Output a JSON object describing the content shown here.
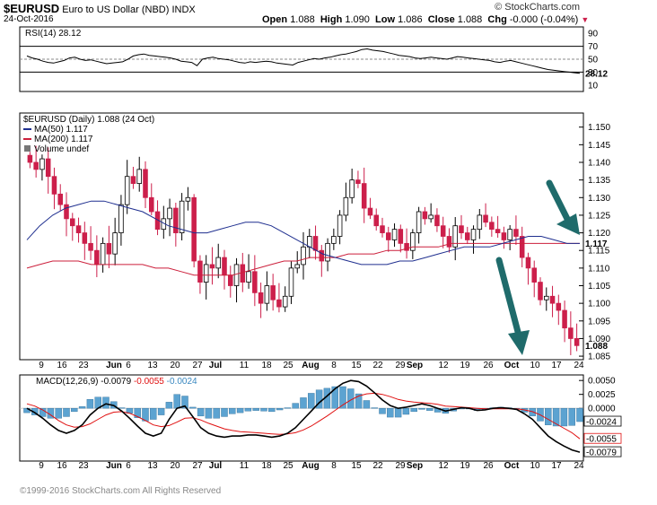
{
  "header": {
    "symbol": "$EURUSD",
    "name": "Euro to US Dollar (NBD)",
    "exchange": "INDX",
    "date": "24-Oct-2016",
    "brand": "© StockCharts.com",
    "open_label": "Open",
    "open": "1.088",
    "high_label": "High",
    "high": "1.090",
    "low_label": "Low",
    "low": "1.086",
    "close_label": "Close",
    "close": "1.088",
    "chg_label": "Chg",
    "chg": "-0.000 (-0.04%)"
  },
  "copyright": "©1999-2016 StockCharts.com All Rights Reserved",
  "colors": {
    "up": "#ffffff",
    "down": "#cc1f4b",
    "ma50": "#1f2f8f",
    "ma200": "#cc1f3b",
    "macd": "#000000",
    "signal": "#e01010",
    "hist": "#5ca3d1",
    "arrow": "#1f6b6b"
  },
  "chart_data": [
    {
      "type": "line",
      "title": "RSI(14) 28.12",
      "ylim": [
        0,
        100
      ],
      "ticks": [
        "90",
        "70",
        "50",
        "30",
        "10"
      ],
      "tick_values": [
        90,
        70,
        50,
        30,
        10
      ],
      "last_value_label": "28.12",
      "values": [
        55,
        52,
        50,
        47,
        45,
        44,
        46,
        48,
        52,
        53,
        50,
        48,
        49,
        47,
        45,
        43,
        44,
        45,
        46,
        50,
        55,
        57,
        58,
        56,
        55,
        54,
        53,
        52,
        50,
        47,
        46,
        45,
        40,
        50,
        52,
        53,
        51,
        50,
        49,
        47,
        45,
        44,
        46,
        45,
        46,
        47,
        46,
        44,
        43,
        42,
        41,
        45,
        47,
        49,
        51,
        50,
        52,
        53,
        55,
        57,
        58,
        60,
        62,
        65,
        66,
        64,
        63,
        62,
        60,
        58,
        56,
        55,
        54,
        52,
        51,
        52,
        53,
        52,
        51,
        50,
        52,
        54,
        53,
        52,
        51,
        50,
        49,
        48,
        46,
        45,
        47,
        48,
        46,
        44,
        42,
        40,
        38,
        36,
        34,
        33,
        32,
        31,
        30,
        29,
        28.12
      ]
    },
    {
      "type": "candlestick",
      "title": "$EURUSD (Daily) 1.088 (24 Oct)",
      "legend": [
        {
          "name": "MA(50) 1.117"
        },
        {
          "name": "MA(200) 1.117"
        },
        {
          "name": "Volume undef"
        }
      ],
      "ylim": [
        1.084,
        1.154
      ],
      "yticks": [
        "1.150",
        "1.145",
        "1.140",
        "1.135",
        "1.130",
        "1.125",
        "1.120",
        "1.115",
        "1.110",
        "1.105",
        "1.100",
        "1.095",
        "1.090",
        "1.085"
      ],
      "ytick_values": [
        1.15,
        1.145,
        1.14,
        1.135,
        1.13,
        1.125,
        1.12,
        1.115,
        1.11,
        1.105,
        1.1,
        1.095,
        1.09,
        1.085
      ],
      "last_labels": [
        "1.117",
        "1.088"
      ],
      "x_labels": [
        "9",
        "16",
        "23",
        "Jun",
        "6",
        "13",
        "20",
        "27",
        "Jul",
        "11",
        "18",
        "25",
        "Aug",
        "8",
        "15",
        "22",
        "29",
        "Sep",
        "12",
        "19",
        "26",
        "Oct",
        "10",
        "17",
        "24"
      ],
      "closes": [
        1.14,
        1.138,
        1.141,
        1.136,
        1.131,
        1.128,
        1.124,
        1.122,
        1.12,
        1.117,
        1.115,
        1.111,
        1.117,
        1.114,
        1.12,
        1.128,
        1.136,
        1.134,
        1.138,
        1.13,
        1.126,
        1.121,
        1.124,
        1.127,
        1.12,
        1.129,
        1.13,
        1.112,
        1.106,
        1.111,
        1.11,
        1.113,
        1.108,
        1.105,
        1.111,
        1.106,
        1.109,
        1.103,
        1.1,
        1.105,
        1.101,
        1.099,
        1.102,
        1.11,
        1.111,
        1.116,
        1.119,
        1.115,
        1.112,
        1.117,
        1.119,
        1.125,
        1.13,
        1.135,
        1.134,
        1.127,
        1.125,
        1.122,
        1.12,
        1.118,
        1.121,
        1.117,
        1.115,
        1.12,
        1.126,
        1.124,
        1.125,
        1.122,
        1.119,
        1.116,
        1.122,
        1.12,
        1.118,
        1.121,
        1.125,
        1.123,
        1.121,
        1.12,
        1.118,
        1.121,
        1.119,
        1.113,
        1.11,
        1.106,
        1.101,
        1.102,
        1.1,
        1.098,
        1.093,
        1.09,
        1.088
      ],
      "ma50": [
        1.118,
        1.122,
        1.125,
        1.127,
        1.128,
        1.129,
        1.129,
        1.128,
        1.127,
        1.126,
        1.124,
        1.122,
        1.121,
        1.12,
        1.12,
        1.121,
        1.122,
        1.123,
        1.123,
        1.122,
        1.12,
        1.118,
        1.116,
        1.114,
        1.113,
        1.112,
        1.111,
        1.111,
        1.111,
        1.112,
        1.112,
        1.113,
        1.114,
        1.115,
        1.116,
        1.116,
        1.116,
        1.117,
        1.118,
        1.119,
        1.119,
        1.118,
        1.117,
        1.117
      ],
      "ma200": [
        1.11,
        1.111,
        1.112,
        1.112,
        1.112,
        1.111,
        1.111,
        1.111,
        1.111,
        1.111,
        1.11,
        1.11,
        1.109,
        1.108,
        1.108,
        1.108,
        1.108,
        1.109,
        1.11,
        1.111,
        1.112,
        1.112,
        1.113,
        1.113,
        1.113,
        1.114,
        1.114,
        1.114,
        1.115,
        1.115,
        1.116,
        1.116,
        1.116,
        1.117,
        1.117,
        1.117,
        1.117,
        1.117,
        1.117,
        1.117,
        1.117,
        1.117,
        1.117,
        1.117
      ]
    },
    {
      "type": "line",
      "title": "MACD(12,26,9)",
      "values_text": [
        "-0.0079",
        "-0.0055",
        "-0.0024"
      ],
      "ylim": [
        -0.0095,
        0.006
      ],
      "yticks": [
        "0.0050",
        "0.0025",
        "0.0000"
      ],
      "ytick_values": [
        0.005,
        0.0025,
        0.0
      ],
      "last_labels": [
        "-0.0024",
        "-0.0055",
        "-0.0079"
      ],
      "macd": [
        0.0,
        -0.0008,
        -0.0018,
        -0.003,
        -0.004,
        -0.0045,
        -0.004,
        -0.003,
        -0.0012,
        0.0,
        0.0008,
        0.0005,
        -0.0005,
        -0.0018,
        -0.0032,
        -0.0045,
        -0.005,
        -0.0045,
        -0.002,
        0.0,
        0.0004,
        -0.0015,
        -0.0035,
        -0.0045,
        -0.005,
        -0.0052,
        -0.005,
        -0.005,
        -0.0048,
        -0.0048,
        -0.005,
        -0.0052,
        -0.005,
        -0.0045,
        -0.0035,
        -0.002,
        -0.0005,
        0.001,
        0.0022,
        0.0035,
        0.0045,
        0.005,
        0.0048,
        0.004,
        0.0028,
        0.0015,
        0.0005,
        0.0,
        0.0002,
        0.0005,
        0.0008,
        0.0005,
        0.0,
        -0.0005,
        -0.0002,
        0.0001,
        0.0,
        -0.0004,
        -0.0003,
        0.0,
        0.0001,
        0.0,
        -0.0002,
        -0.001,
        -0.002,
        -0.0035,
        -0.005,
        -0.006,
        -0.0068,
        -0.0075,
        -0.0079
      ],
      "signal": [
        0.0008,
        0.0004,
        -0.0003,
        -0.0012,
        -0.0022,
        -0.003,
        -0.0034,
        -0.0033,
        -0.0028,
        -0.002,
        -0.0012,
        -0.0007,
        -0.0006,
        -0.0009,
        -0.0015,
        -0.0022,
        -0.003,
        -0.0033,
        -0.0031,
        -0.0025,
        -0.0018,
        -0.0017,
        -0.0021,
        -0.0027,
        -0.0032,
        -0.0037,
        -0.004,
        -0.0042,
        -0.0043,
        -0.0044,
        -0.0045,
        -0.0046,
        -0.0047,
        -0.0046,
        -0.0044,
        -0.0039,
        -0.0032,
        -0.0023,
        -0.0014,
        -0.0004,
        0.0006,
        0.0015,
        0.0022,
        0.0026,
        0.0027,
        0.0025,
        0.0021,
        0.0016,
        0.0013,
        0.0011,
        0.001,
        0.0009,
        0.0007,
        0.0004,
        0.0003,
        0.0002,
        0.0001,
        0.0,
        -0.0001,
        -0.0001,
        -0.0001,
        -0.0001,
        -0.0001,
        -0.0003,
        -0.0006,
        -0.0012,
        -0.002,
        -0.0028,
        -0.0036,
        -0.0044,
        -0.0055
      ]
    }
  ]
}
